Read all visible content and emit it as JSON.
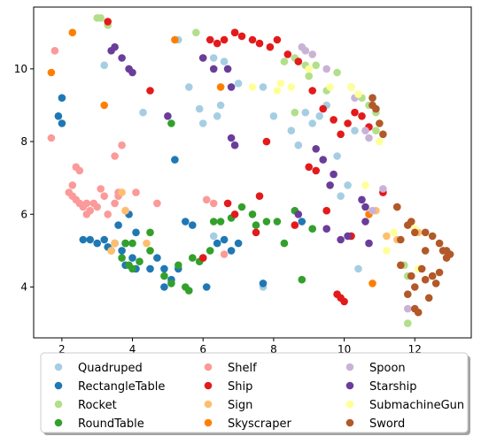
{
  "chart_data": {
    "type": "scatter",
    "title": "",
    "xlabel": "",
    "ylabel": "",
    "xlim": [
      1.2,
      13.6
    ],
    "ylim": [
      2.6,
      11.7
    ],
    "xticks": [
      2,
      4,
      6,
      8,
      10,
      12
    ],
    "yticks": [
      4,
      6,
      8,
      10
    ],
    "grid": false,
    "legend_position": "bottom-center",
    "legend_columns": 3,
    "series": [
      {
        "name": "Quadruped",
        "color": "#a6cee3",
        "points": [
          [
            3.2,
            10.1
          ],
          [
            4.3,
            8.8
          ],
          [
            5.3,
            10.8
          ],
          [
            5.6,
            9.5
          ],
          [
            5.9,
            8.9
          ],
          [
            6.0,
            8.5
          ],
          [
            6.3,
            10.3
          ],
          [
            6.4,
            8.7
          ],
          [
            6.5,
            9.0
          ],
          [
            6.6,
            10.2
          ],
          [
            7.0,
            9.6
          ],
          [
            7.7,
            9.5
          ],
          [
            8.0,
            8.7
          ],
          [
            8.5,
            8.3
          ],
          [
            8.7,
            7.9
          ],
          [
            8.9,
            8.8
          ],
          [
            9.1,
            8.5
          ],
          [
            9.3,
            8.7
          ],
          [
            9.5,
            9.0
          ],
          [
            9.8,
            7.6
          ],
          [
            10.1,
            6.8
          ],
          [
            10.3,
            8.3
          ],
          [
            10.4,
            4.5
          ],
          [
            10.8,
            9.2
          ],
          [
            9.9,
            6.5
          ],
          [
            6.3,
            5.4
          ],
          [
            7.7,
            4.0
          ]
        ]
      },
      {
        "name": "RectangleTable",
        "color": "#1f78b4",
        "points": [
          [
            1.9,
            8.7
          ],
          [
            2.0,
            8.5
          ],
          [
            2.0,
            9.2
          ],
          [
            2.8,
            5.3
          ],
          [
            3.0,
            5.2
          ],
          [
            3.2,
            5.3
          ],
          [
            3.3,
            5.1
          ],
          [
            3.5,
            5.2
          ],
          [
            3.7,
            5.0
          ],
          [
            3.8,
            5.2
          ],
          [
            4.0,
            4.8
          ],
          [
            3.8,
            4.6
          ],
          [
            4.1,
            4.5
          ],
          [
            4.5,
            4.5
          ],
          [
            4.7,
            4.8
          ],
          [
            4.9,
            4.0
          ],
          [
            5.1,
            4.2
          ],
          [
            5.3,
            4.5
          ],
          [
            5.5,
            5.8
          ],
          [
            5.7,
            5.7
          ],
          [
            6.1,
            4.0
          ],
          [
            6.4,
            5.2
          ],
          [
            6.8,
            5.0
          ],
          [
            7.0,
            5.2
          ],
          [
            5.2,
            7.5
          ],
          [
            3.9,
            6.0
          ],
          [
            4.1,
            5.5
          ],
          [
            7.7,
            4.1
          ],
          [
            8.8,
            5.8
          ],
          [
            4.9,
            4.5
          ],
          [
            6.6,
            5.3
          ],
          [
            3.6,
            5.7
          ],
          [
            2.6,
            5.3
          ]
        ]
      },
      {
        "name": "Rocket",
        "color": "#b2df8a",
        "points": [
          [
            3.0,
            11.4
          ],
          [
            3.1,
            11.4
          ],
          [
            3.3,
            11.2
          ],
          [
            5.8,
            11.0
          ],
          [
            8.3,
            10.2
          ],
          [
            8.6,
            10.3
          ],
          [
            8.9,
            10.1
          ],
          [
            9.0,
            9.8
          ],
          [
            9.5,
            9.4
          ],
          [
            10.2,
            9.5
          ],
          [
            10.5,
            9.2
          ],
          [
            10.7,
            9.0
          ],
          [
            10.9,
            8.8
          ],
          [
            9.2,
            10.1
          ],
          [
            10.9,
            8.3
          ],
          [
            11.7,
            4.6
          ],
          [
            11.8,
            4.3
          ],
          [
            11.8,
            3.0
          ],
          [
            8.6,
            8.8
          ],
          [
            9.8,
            9.9
          ]
        ]
      },
      {
        "name": "RoundTable",
        "color": "#33a02c",
        "points": [
          [
            3.4,
            5.0
          ],
          [
            3.7,
            4.8
          ],
          [
            3.9,
            4.6
          ],
          [
            4.0,
            4.5
          ],
          [
            4.2,
            4.7
          ],
          [
            4.5,
            5.5
          ],
          [
            4.9,
            4.3
          ],
          [
            5.1,
            4.1
          ],
          [
            5.3,
            4.6
          ],
          [
            5.5,
            4.0
          ],
          [
            5.7,
            4.8
          ],
          [
            5.9,
            4.7
          ],
          [
            6.2,
            5.0
          ],
          [
            6.3,
            5.8
          ],
          [
            6.5,
            5.8
          ],
          [
            6.8,
            5.9
          ],
          [
            7.1,
            6.2
          ],
          [
            7.4,
            6.0
          ],
          [
            7.5,
            5.7
          ],
          [
            7.8,
            5.8
          ],
          [
            8.1,
            5.8
          ],
          [
            8.3,
            5.2
          ],
          [
            8.6,
            6.1
          ],
          [
            8.8,
            4.2
          ],
          [
            9.1,
            5.6
          ],
          [
            4.5,
            5.0
          ],
          [
            3.8,
            5.2
          ],
          [
            6.0,
            4.8
          ],
          [
            5.1,
            8.5
          ],
          [
            4.0,
            5.2
          ],
          [
            5.6,
            3.9
          ]
        ]
      },
      {
        "name": "Shelf",
        "color": "#fb9a99",
        "points": [
          [
            1.8,
            10.5
          ],
          [
            1.7,
            8.1
          ],
          [
            2.2,
            6.6
          ],
          [
            2.3,
            6.5
          ],
          [
            2.4,
            6.4
          ],
          [
            2.5,
            6.3
          ],
          [
            2.6,
            6.2
          ],
          [
            2.7,
            6.3
          ],
          [
            2.8,
            6.1
          ],
          [
            2.9,
            6.3
          ],
          [
            3.0,
            6.2
          ],
          [
            3.1,
            6.7
          ],
          [
            3.2,
            6.5
          ],
          [
            3.3,
            6.0
          ],
          [
            3.5,
            6.3
          ],
          [
            3.6,
            6.5
          ],
          [
            3.8,
            6.1
          ],
          [
            4.1,
            6.6
          ],
          [
            4.7,
            6.3
          ],
          [
            2.4,
            7.3
          ],
          [
            2.5,
            7.2
          ],
          [
            3.5,
            7.6
          ],
          [
            3.7,
            7.9
          ],
          [
            3.6,
            6.6
          ],
          [
            6.1,
            6.4
          ],
          [
            6.3,
            6.3
          ],
          [
            2.3,
            6.8
          ],
          [
            6.6,
            4.9
          ],
          [
            2.7,
            6.0
          ]
        ]
      },
      {
        "name": "Ship",
        "color": "#e31a1c",
        "points": [
          [
            3.3,
            11.3
          ],
          [
            4.5,
            9.4
          ],
          [
            6.2,
            10.8
          ],
          [
            6.4,
            10.7
          ],
          [
            6.6,
            10.8
          ],
          [
            6.9,
            11.0
          ],
          [
            7.1,
            10.9
          ],
          [
            7.4,
            10.8
          ],
          [
            7.6,
            10.7
          ],
          [
            7.9,
            10.6
          ],
          [
            8.1,
            10.8
          ],
          [
            8.4,
            10.4
          ],
          [
            8.7,
            10.2
          ],
          [
            9.1,
            9.4
          ],
          [
            9.4,
            8.9
          ],
          [
            9.7,
            8.6
          ],
          [
            9.9,
            8.2
          ],
          [
            10.1,
            8.5
          ],
          [
            10.3,
            8.8
          ],
          [
            10.5,
            8.7
          ],
          [
            10.7,
            8.4
          ],
          [
            7.8,
            8.0
          ],
          [
            9.0,
            7.3
          ],
          [
            9.2,
            7.2
          ],
          [
            9.5,
            6.1
          ],
          [
            9.8,
            3.8
          ],
          [
            9.9,
            3.7
          ],
          [
            10.0,
            3.6
          ],
          [
            7.6,
            6.5
          ],
          [
            7.5,
            5.5
          ],
          [
            6.9,
            6.0
          ],
          [
            11.1,
            6.6
          ],
          [
            11.5,
            6.2
          ],
          [
            10.2,
            5.4
          ],
          [
            8.6,
            5.7
          ],
          [
            6.7,
            6.3
          ],
          [
            6.0,
            4.8
          ],
          [
            6.9,
            11.0
          ]
        ]
      },
      {
        "name": "Sign",
        "color": "#fdbf6f",
        "points": [
          [
            3.8,
            6.1
          ],
          [
            4.4,
            5.2
          ],
          [
            3.4,
            5.0
          ],
          [
            3.5,
            5.2
          ],
          [
            11.2,
            5.4
          ],
          [
            11.5,
            5.3
          ],
          [
            11.9,
            5.8
          ],
          [
            12.1,
            5.5
          ],
          [
            10.9,
            6.1
          ],
          [
            3.7,
            6.6
          ]
        ]
      },
      {
        "name": "Skyscraper",
        "color": "#ff7f00",
        "points": [
          [
            1.7,
            9.9
          ],
          [
            2.3,
            11.0
          ],
          [
            3.2,
            9.0
          ],
          [
            5.2,
            10.8
          ],
          [
            6.5,
            9.5
          ],
          [
            10.8,
            4.1
          ],
          [
            6.0,
            10.3
          ],
          [
            10.7,
            6.0
          ]
        ]
      },
      {
        "name": "Spoon",
        "color": "#cab2d6",
        "points": [
          [
            8.8,
            10.6
          ],
          [
            9.5,
            10.0
          ],
          [
            10.3,
            9.2
          ],
          [
            11.1,
            6.7
          ],
          [
            11.8,
            3.4
          ],
          [
            10.6,
            8.3
          ],
          [
            10.7,
            8.1
          ],
          [
            9.1,
            10.4
          ],
          [
            10.8,
            6.1
          ],
          [
            8.9,
            10.5
          ]
        ]
      },
      {
        "name": "Starship",
        "color": "#6a3d9a",
        "points": [
          [
            3.5,
            10.6
          ],
          [
            3.7,
            10.3
          ],
          [
            3.9,
            10.0
          ],
          [
            4.0,
            9.9
          ],
          [
            3.4,
            10.5
          ],
          [
            5.0,
            8.7
          ],
          [
            6.0,
            10.3
          ],
          [
            6.3,
            10.0
          ],
          [
            6.7,
            10.0
          ],
          [
            6.8,
            9.5
          ],
          [
            6.8,
            8.1
          ],
          [
            6.9,
            7.9
          ],
          [
            9.2,
            7.8
          ],
          [
            9.4,
            7.5
          ],
          [
            9.6,
            6.8
          ],
          [
            9.7,
            7.1
          ],
          [
            9.9,
            5.3
          ],
          [
            10.1,
            5.4
          ],
          [
            10.6,
            6.2
          ],
          [
            10.6,
            5.8
          ],
          [
            10.7,
            5.2
          ],
          [
            9.5,
            5.6
          ],
          [
            8.7,
            6.0
          ],
          [
            10.5,
            6.4
          ]
        ]
      },
      {
        "name": "SubmachineGun",
        "color": "#ffff99",
        "points": [
          [
            7.4,
            9.5
          ],
          [
            8.2,
            9.6
          ],
          [
            8.5,
            9.5
          ],
          [
            9.0,
            10.0
          ],
          [
            9.6,
            9.5
          ],
          [
            10.2,
            9.5
          ],
          [
            10.4,
            9.3
          ],
          [
            10.6,
            6.8
          ],
          [
            11.0,
            8.0
          ],
          [
            11.2,
            5.0
          ],
          [
            11.4,
            5.5
          ],
          [
            12.0,
            5.6
          ],
          [
            12.1,
            4.5
          ],
          [
            11.0,
            8.5
          ],
          [
            8.1,
            9.4
          ]
        ]
      },
      {
        "name": "Sword",
        "color": "#b15928",
        "points": [
          [
            10.8,
            9.2
          ],
          [
            10.8,
            9.0
          ],
          [
            10.9,
            8.9
          ],
          [
            11.0,
            8.5
          ],
          [
            11.1,
            8.2
          ],
          [
            11.5,
            6.2
          ],
          [
            11.8,
            5.7
          ],
          [
            12.0,
            5.5
          ],
          [
            12.3,
            5.5
          ],
          [
            12.5,
            5.4
          ],
          [
            12.7,
            5.2
          ],
          [
            12.9,
            5.0
          ],
          [
            13.0,
            4.9
          ],
          [
            12.7,
            4.4
          ],
          [
            12.5,
            4.3
          ],
          [
            12.3,
            4.2
          ],
          [
            12.0,
            4.0
          ],
          [
            12.0,
            3.4
          ],
          [
            12.1,
            3.3
          ],
          [
            11.8,
            3.8
          ],
          [
            11.9,
            4.3
          ],
          [
            12.2,
            4.5
          ],
          [
            12.8,
            5.0
          ],
          [
            11.6,
            5.3
          ],
          [
            11.9,
            5.8
          ],
          [
            12.4,
            3.7
          ],
          [
            12.6,
            4.1
          ],
          [
            11.6,
            4.6
          ],
          [
            12.3,
            5.0
          ],
          [
            12.9,
            4.8
          ]
        ]
      }
    ]
  }
}
